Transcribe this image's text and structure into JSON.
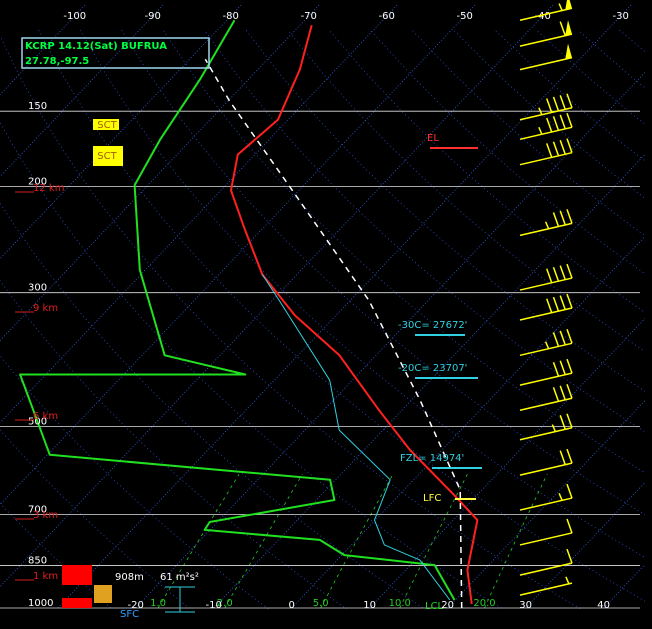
{
  "chart_data": {
    "type": "skewt",
    "title": "KCRP 14.12(Sat) BUFRUA",
    "subtitle": "27.78,-97.5",
    "ylim": [
      1000,
      100
    ],
    "log_y": true,
    "yticks": [
      150,
      200,
      300,
      500,
      700,
      850,
      1000
    ],
    "xlim": [
      -37.4,
      46.2
    ],
    "xticks": [
      -20,
      -10,
      0,
      10,
      20,
      30,
      40
    ],
    "x2ticks": [
      -100,
      -90,
      -80,
      -70,
      -60,
      -50,
      -40,
      -30
    ],
    "mixing_color": "#22cc22",
    "mixing_ratios": [
      {
        "value": 1,
        "label": "1.0"
      },
      {
        "value": 2,
        "label": "2.0"
      },
      {
        "value": 5,
        "label": "5.0"
      },
      {
        "value": 10,
        "label": "10.0"
      },
      {
        "value": 20,
        "label": "20.0"
      }
    ],
    "series": [
      {
        "color": "#ff2020",
        "width": 2,
        "pressure": [
          985,
          865,
          715,
          650,
          547,
          470,
          381,
          327,
          280,
          236,
          203,
          177,
          155,
          128,
          108
        ],
        "values": [
          22.6,
          17.9,
          13.1,
          7.1,
          -4.1,
          -12.9,
          -24.7,
          -35.3,
          -44.4,
          -52.1,
          -58.7,
          -62.2,
          -61.3,
          -64.6,
          -68.5
        ]
      },
      {
        "color": "#20e020",
        "width": 2,
        "pressure": [
          970,
          849,
          817,
          771,
          742,
          720,
          662,
          613,
          557,
          410,
          410,
          381,
          275,
          199,
          167,
          133,
          106
        ],
        "values": [
          19.9,
          13.1,
          0.3,
          -4.7,
          -20.7,
          -21.0,
          -7.7,
          -10.7,
          -49.7,
          -63.3,
          -34.4,
          -47.1,
          -60.7,
          -71.7,
          -74.0,
          -76.2,
          -79.0
        ]
      },
      {
        "color": "#30d0e0",
        "width": 1,
        "pressure": [
          970,
          833,
          786,
          715,
          613,
          507,
          419,
          309,
          280
        ],
        "values": [
          19.3,
          10.6,
          4.2,
          -0.1,
          -3.0,
          -15.6,
          -22.9,
          -39.1,
          -44.4
        ]
      },
      {
        "color": "#ffffff",
        "width": 1.5,
        "dashed": true,
        "pressure": [
          1000,
          637,
          452,
          309,
          211,
          144,
          123
        ],
        "values": [
          21.8,
          7.2,
          -8.9,
          -27.6,
          -48.7,
          -69.9,
          -78.0
        ]
      }
    ],
    "winds": {
      "color": "#ffff00",
      "pressure": [
        106,
        117,
        128,
        155,
        167,
        184,
        241,
        297,
        333,
        381,
        427,
        470,
        526,
        602,
        688,
        786,
        882,
        952
      ],
      "values": [
        55,
        60,
        50,
        45,
        45,
        40,
        35,
        40,
        40,
        35,
        30,
        30,
        25,
        20,
        15,
        10,
        10,
        5
      ]
    },
    "heights": [
      "12 km",
      "9 km",
      "6 km",
      "3 km",
      "1 km"
    ],
    "annotations": [
      {
        "text": "EL",
        "color": "#ff3030"
      },
      {
        "text": "-30C= 27672'",
        "color": "#30d0e0"
      },
      {
        "text": "-20C= 23707'",
        "color": "#30d0e0"
      },
      {
        "text": "FZL= 14974'",
        "color": "#30d0e0"
      },
      {
        "text": "LFC",
        "color": "#ffff40"
      },
      {
        "text": "LCL",
        "color": "#20e020"
      }
    ],
    "clouds": [
      "SCT",
      "SCT"
    ],
    "surface_labels": [
      "908m",
      "61 m²s²",
      "SFC"
    ]
  }
}
